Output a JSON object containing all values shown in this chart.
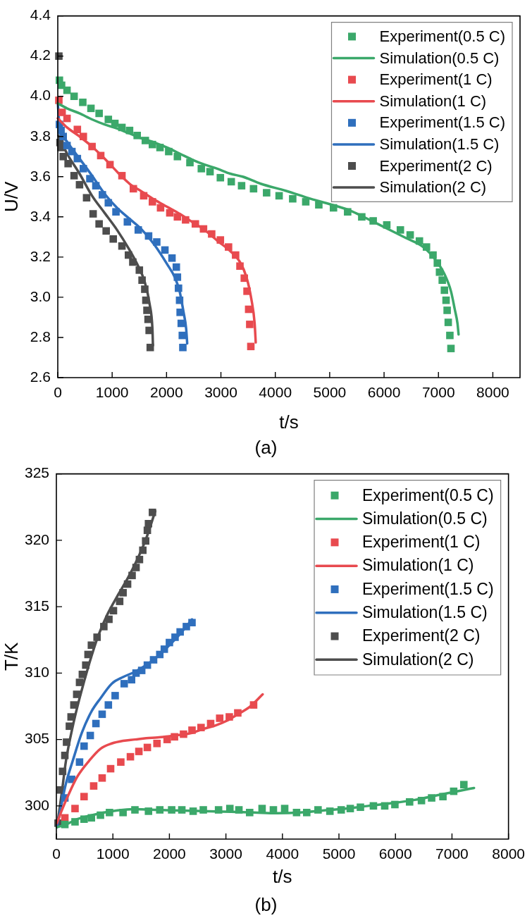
{
  "chart_data": [
    {
      "type": "scatter",
      "xlabel": "t/s",
      "ylabel": "U/V",
      "xlim": [
        0,
        8500
      ],
      "xticks": [
        0,
        1000,
        2000,
        3000,
        4000,
        5000,
        6000,
        7000,
        8000
      ],
      "ylim": [
        2.6,
        4.4
      ],
      "yticks": [
        2.6,
        2.8,
        {
          "value": 3,
          "label": "3.0"
        },
        3.2,
        3.4,
        3.6,
        3.8,
        {
          "value": 4,
          "label": "4.0"
        },
        4.2,
        4.4
      ],
      "legend": "top right",
      "marker": "square",
      "annotations": [
        "(a)"
      ],
      "series": [
        {
          "name": "Experiment(0.5 C)",
          "type": "scatter",
          "color": "#3ba86a",
          "x": [
            30,
            70,
            170,
            300,
            460,
            610,
            760,
            930,
            1050,
            1180,
            1320,
            1460,
            1610,
            1740,
            1880,
            2040,
            2200,
            2430,
            2640,
            2800,
            2990,
            3190,
            3380,
            3600,
            3840,
            4070,
            4320,
            4560,
            4800,
            5070,
            5330,
            5590,
            5800,
            6050,
            6300,
            6480,
            6650,
            6780,
            6900,
            6980,
            7020,
            7070,
            7110,
            7140,
            7160,
            7180,
            7210,
            7230
          ],
          "values": [
            4.08,
            4.055,
            4.03,
            4.0,
            3.97,
            3.94,
            3.915,
            3.885,
            3.865,
            3.845,
            3.83,
            3.805,
            3.78,
            3.76,
            3.745,
            3.725,
            3.7,
            3.67,
            3.64,
            3.625,
            3.595,
            3.575,
            3.555,
            3.54,
            3.52,
            3.505,
            3.49,
            3.475,
            3.46,
            3.445,
            3.425,
            3.4,
            3.38,
            3.36,
            3.335,
            3.31,
            3.28,
            3.25,
            3.21,
            3.17,
            3.125,
            3.085,
            3.035,
            2.985,
            2.935,
            2.875,
            2.81,
            2.745
          ]
        },
        {
          "name": "Simulation(0.5 C)",
          "type": "line",
          "marker": "none",
          "color": "#3ba86a",
          "x": [
            0,
            170,
            400,
            630,
            860,
            1090,
            1320,
            1550,
            1780,
            2010,
            2240,
            2470,
            2700,
            2930,
            3170,
            3400,
            3730,
            4190,
            4650,
            5110,
            5390,
            5660,
            6030,
            6400,
            6720,
            6950,
            7110,
            7230,
            7300,
            7350,
            7370
          ],
          "values": [
            3.965,
            3.94,
            3.915,
            3.885,
            3.86,
            3.84,
            3.815,
            3.79,
            3.77,
            3.745,
            3.715,
            3.685,
            3.66,
            3.64,
            3.615,
            3.6,
            3.565,
            3.53,
            3.49,
            3.455,
            3.43,
            3.395,
            3.345,
            3.295,
            3.25,
            3.185,
            3.115,
            3.03,
            2.94,
            2.87,
            2.815
          ]
        },
        {
          "name": "Experiment(1 C)",
          "type": "scatter",
          "color": "#e84a4f",
          "x": [
            20,
            80,
            170,
            360,
            470,
            630,
            790,
            960,
            1180,
            1390,
            1580,
            1740,
            1890,
            2060,
            2200,
            2350,
            2530,
            2680,
            2830,
            2990,
            3140,
            3270,
            3350,
            3430,
            3480,
            3510,
            3530,
            3550
          ],
          "values": [
            3.98,
            3.92,
            3.89,
            3.835,
            3.8,
            3.75,
            3.705,
            3.66,
            3.605,
            3.54,
            3.505,
            3.475,
            3.445,
            3.42,
            3.4,
            3.385,
            3.365,
            3.34,
            3.315,
            3.285,
            3.25,
            3.21,
            3.155,
            3.095,
            3.03,
            2.94,
            2.865,
            2.755
          ]
        },
        {
          "name": "Simulation(1 C)",
          "type": "line",
          "marker": "none",
          "color": "#e84a4f",
          "x": [
            0,
            170,
            400,
            630,
            860,
            1090,
            1320,
            1550,
            1780,
            2010,
            2240,
            2470,
            2700,
            2940,
            3170,
            3350,
            3470,
            3560,
            3620,
            3640
          ],
          "values": [
            3.89,
            3.845,
            3.8,
            3.75,
            3.69,
            3.625,
            3.565,
            3.525,
            3.485,
            3.45,
            3.415,
            3.375,
            3.335,
            3.28,
            3.23,
            3.175,
            3.1,
            2.99,
            2.87,
            2.775
          ]
        },
        {
          "name": "Experiment(1.5 C)",
          "type": "scatter",
          "color": "#2f6fbd",
          "x": [
            30,
            60,
            100,
            170,
            260,
            360,
            470,
            590,
            700,
            820,
            930,
            1070,
            1280,
            1480,
            1670,
            1820,
            1970,
            2100,
            2180,
            2200,
            2220,
            2240,
            2250,
            2270,
            2290,
            2300
          ],
          "values": [
            3.86,
            3.83,
            3.8,
            3.755,
            3.725,
            3.69,
            3.64,
            3.59,
            3.555,
            3.51,
            3.47,
            3.425,
            3.375,
            3.335,
            3.305,
            3.275,
            3.235,
            3.195,
            3.15,
            3.1,
            3.045,
            2.985,
            2.925,
            2.87,
            2.81,
            2.75
          ]
        },
        {
          "name": "Simulation(1.5 C)",
          "type": "line",
          "marker": "none",
          "color": "#2f6fbd",
          "x": [
            0,
            30,
            170,
            400,
            630,
            860,
            1090,
            1320,
            1550,
            1780,
            2010,
            2150,
            2240,
            2310,
            2360,
            2380
          ],
          "values": [
            3.97,
            3.86,
            3.775,
            3.69,
            3.605,
            3.515,
            3.445,
            3.39,
            3.335,
            3.26,
            3.165,
            3.1,
            3.03,
            2.93,
            2.845,
            2.77
          ]
        },
        {
          "name": "Experiment(2 C)",
          "type": "scatter",
          "color": "#4d4d4d",
          "x": [
            20,
            40,
            60,
            100,
            190,
            300,
            400,
            530,
            650,
            760,
            890,
            1020,
            1180,
            1300,
            1380,
            1500,
            1550,
            1600,
            1620,
            1640,
            1660,
            1680,
            1700
          ],
          "values": [
            4.2,
            3.77,
            3.745,
            3.7,
            3.665,
            3.605,
            3.56,
            3.495,
            3.415,
            3.365,
            3.33,
            3.29,
            3.255,
            3.21,
            3.175,
            3.135,
            3.085,
            3.04,
            2.985,
            2.935,
            2.89,
            2.835,
            2.75
          ]
        },
        {
          "name": "Simulation(2 C)",
          "type": "line",
          "marker": "none",
          "color": "#4d4d4d",
          "x": [
            10,
            170,
            400,
            630,
            860,
            1090,
            1320,
            1460,
            1600,
            1690,
            1740,
            1750
          ],
          "values": [
            3.805,
            3.715,
            3.615,
            3.505,
            3.42,
            3.335,
            3.235,
            3.165,
            3.075,
            2.965,
            2.845,
            2.76
          ]
        }
      ]
    },
    {
      "type": "scatter",
      "xlabel": "t/s",
      "ylabel": "T/K",
      "xlim": [
        0,
        8000
      ],
      "xticks": [
        0,
        1000,
        2000,
        3000,
        4000,
        5000,
        6000,
        7000,
        8000
      ],
      "ylim": [
        297.5,
        325
      ],
      "yticks": [
        300,
        305,
        310,
        315,
        320,
        325
      ],
      "legend": "top right",
      "marker": "square",
      "annotations": [
        "(b)"
      ],
      "series": [
        {
          "name": "Experiment(0.5 C)",
          "type": "scatter",
          "color": "#3ba86a",
          "x": [
            150,
            330,
            490,
            620,
            780,
            940,
            1180,
            1390,
            1630,
            1830,
            2040,
            2220,
            2420,
            2600,
            2870,
            3070,
            3230,
            3420,
            3640,
            3840,
            4040,
            4250,
            4430,
            4630,
            4840,
            5040,
            5200,
            5380,
            5610,
            5810,
            5990,
            6250,
            6460,
            6640,
            6840,
            7030,
            7210
          ],
          "values": [
            298.6,
            298.8,
            299.0,
            299.1,
            299.3,
            299.5,
            299.5,
            299.7,
            299.6,
            299.7,
            299.7,
            299.7,
            299.6,
            299.7,
            299.7,
            299.8,
            299.7,
            299.5,
            299.8,
            299.7,
            299.8,
            299.5,
            299.5,
            299.7,
            299.6,
            299.7,
            299.8,
            299.9,
            300.0,
            300.0,
            300.1,
            300.3,
            300.4,
            300.6,
            300.7,
            301.1,
            301.6
          ]
        },
        {
          "name": "Simulation(0.5 C)",
          "type": "line",
          "marker": "none",
          "color": "#3ba86a",
          "x": [
            10,
            170,
            370,
            580,
            780,
            980,
            1180,
            1390,
            1800,
            2200,
            2690,
            3090,
            3500,
            3900,
            4310,
            4710,
            5120,
            5520,
            5930,
            6340,
            6740,
            7150,
            7390
          ],
          "values": [
            298.4,
            298.6,
            299.0,
            299.25,
            299.45,
            299.6,
            299.7,
            299.75,
            299.7,
            299.65,
            299.6,
            299.55,
            299.5,
            299.45,
            299.5,
            299.65,
            299.8,
            300.0,
            300.2,
            300.45,
            300.8,
            301.15,
            301.35
          ]
        },
        {
          "name": "Experiment(1 C)",
          "type": "scatter",
          "color": "#e84a4f",
          "x": [
            150,
            330,
            490,
            660,
            810,
            960,
            1140,
            1310,
            1460,
            1610,
            1780,
            1960,
            2090,
            2250,
            2400,
            2560,
            2730,
            2890,
            3060,
            3210,
            3490
          ],
          "values": [
            299.1,
            299.8,
            300.7,
            301.5,
            302.1,
            302.8,
            303.3,
            303.7,
            304.1,
            304.4,
            304.7,
            305.0,
            305.2,
            305.4,
            305.7,
            305.9,
            306.2,
            306.6,
            306.7,
            307.0,
            307.6
          ]
        },
        {
          "name": "Simulation(1 C)",
          "type": "line",
          "marker": "none",
          "color": "#e84a4f",
          "x": [
            10,
            90,
            210,
            370,
            580,
            780,
            980,
            1180,
            1390,
            1590,
            1790,
            2000,
            2200,
            2400,
            2600,
            2810,
            3010,
            3210,
            3420,
            3650
          ],
          "values": [
            298.7,
            299.6,
            300.8,
            302.2,
            303.4,
            304.3,
            304.7,
            304.9,
            305.0,
            305.1,
            305.15,
            305.25,
            305.35,
            305.5,
            305.8,
            306.05,
            306.4,
            306.9,
            307.45,
            308.4
          ]
        },
        {
          "name": "Experiment(1.5 C)",
          "type": "scatter",
          "color": "#2f6fbd",
          "x": [
            150,
            270,
            410,
            490,
            600,
            700,
            810,
            920,
            1040,
            1200,
            1330,
            1410,
            1510,
            1610,
            1720,
            1830,
            1910,
            2000,
            2100,
            2190,
            2300,
            2400
          ],
          "values": [
            300.6,
            302.0,
            303.3,
            304.5,
            305.3,
            306.2,
            306.9,
            307.6,
            308.3,
            309.2,
            309.5,
            310.0,
            310.2,
            310.6,
            311.0,
            311.4,
            311.8,
            312.3,
            312.7,
            313.1,
            313.5,
            313.8
          ]
        },
        {
          "name": "Simulation(1.5 C)",
          "type": "line",
          "marker": "none",
          "color": "#2f6fbd",
          "x": [
            10,
            90,
            170,
            290,
            450,
            620,
            780,
            980,
            1180,
            1390,
            1590,
            1790,
            2000,
            2200,
            2400
          ],
          "values": [
            298.4,
            300.1,
            301.7,
            303.4,
            305.5,
            307.1,
            308.1,
            309.2,
            309.7,
            310.1,
            310.6,
            311.25,
            312.1,
            313.0,
            314.05
          ]
        },
        {
          "name": "Experiment(2 C)",
          "type": "scatter",
          "color": "#4d4d4d",
          "x": [
            30,
            70,
            110,
            150,
            180,
            230,
            260,
            310,
            360,
            410,
            460,
            520,
            560,
            620,
            720,
            840,
            930,
            1010,
            1120,
            1180,
            1260,
            1340,
            1410,
            1470,
            1530,
            1580,
            1610,
            1630,
            1700
          ],
          "values": [
            298.7,
            301.2,
            302.6,
            303.8,
            304.8,
            306.0,
            306.7,
            307.6,
            308.4,
            309.3,
            309.9,
            310.6,
            311.4,
            312.1,
            312.7,
            313.5,
            314.05,
            314.7,
            315.4,
            316.05,
            316.7,
            317.35,
            317.95,
            318.55,
            319.25,
            319.95,
            320.75,
            321.25,
            322.1
          ]
        },
        {
          "name": "Simulation(2 C)",
          "type": "line",
          "marker": "none",
          "color": "#4d4d4d",
          "x": [
            10,
            90,
            170,
            290,
            410,
            580,
            740,
            900,
            1100,
            1270,
            1430,
            1590,
            1750
          ],
          "values": [
            298.4,
            300.8,
            303.4,
            306.0,
            308.1,
            310.7,
            312.8,
            314.4,
            315.95,
            317.2,
            318.55,
            320.15,
            322.2
          ]
        }
      ]
    }
  ]
}
